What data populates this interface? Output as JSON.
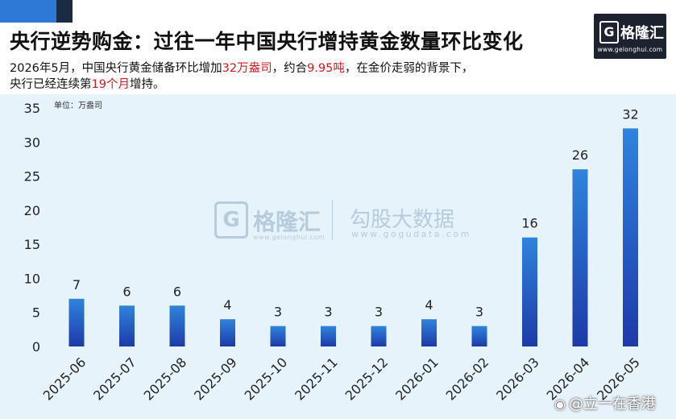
{
  "header": {
    "title": "央行逆势购金：过往一年中国央行增持黄金数量环比变化",
    "sub1_a": "2026年5月，中国央行黄金储备环比增加",
    "sub1_red1": "32万盎司",
    "sub1_b": "，约合",
    "sub1_red2": "9.95吨",
    "sub1_c": "，在金价走弱的背景下，",
    "sub2_a": "央行已经连续第",
    "sub2_red": "19个月",
    "sub2_b": "增持。"
  },
  "logo": {
    "glyph": "G",
    "name": "格隆汇",
    "url": "www.gelonghui.com"
  },
  "watermark": {
    "glyph": "G",
    "name": "格隆汇",
    "url1": "www.gelonghui.com",
    "name2": "勾股大数据",
    "url2": "www.gogudata.com"
  },
  "credit": {
    "icon": "weibo-icon",
    "text": "@立一在香港"
  },
  "colors": {
    "bar_top": "#2f84dc",
    "bar_bottom": "#1d3aa8",
    "background": "#e6f3fa",
    "highlight": "#d6181e"
  },
  "chart_data": {
    "type": "bar",
    "unit_label": "单位：万盎司",
    "categories": [
      "2025-06",
      "2025-07",
      "2025-08",
      "2025-09",
      "2025-10",
      "2025-11",
      "2025-12",
      "2026-01",
      "2026-02",
      "2026-03",
      "2026-04",
      "2026-05"
    ],
    "values": [
      7,
      6,
      6,
      4,
      3,
      3,
      3,
      4,
      3,
      16,
      26,
      32
    ],
    "ylim": [
      0,
      35
    ],
    "yticks": [
      0,
      5,
      10,
      15,
      20,
      25,
      30,
      35
    ],
    "grid": false,
    "data_labels": true
  }
}
